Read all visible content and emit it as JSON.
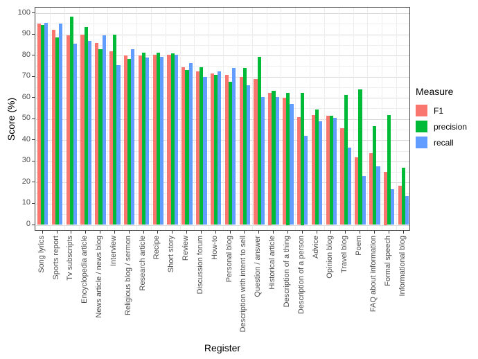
{
  "figure": {
    "y_axis_title": "Score (%)",
    "x_axis_title": "Register",
    "y_tick_labels": [
      "0",
      "10",
      "20",
      "30",
      "40",
      "50",
      "60",
      "70",
      "80",
      "90",
      "100"
    ],
    "legend": {
      "title": "Measure",
      "items": [
        {
          "label": "F1",
          "color": "#F8766D"
        },
        {
          "label": "precision",
          "color": "#00BA38"
        },
        {
          "label": "recall",
          "color": "#619CFF"
        }
      ]
    }
  },
  "chart_data": {
    "type": "bar",
    "title": "",
    "xlabel": "Register",
    "ylabel": "Score (%)",
    "ylim": [
      0,
      100
    ],
    "y_major_ticks": [
      0,
      10,
      20,
      30,
      40,
      50,
      60,
      70,
      80,
      90,
      100
    ],
    "y_minor_ticks": [
      5,
      15,
      25,
      35,
      45,
      55,
      65,
      75,
      85,
      95
    ],
    "grid": true,
    "legend_position": "right",
    "categories": [
      "Song lyrics",
      "Sports report",
      "Tv subscripts",
      "Encyclopedia article",
      "News article / news blog",
      "Interview",
      "Religious blog / sermon",
      "Research article",
      "Recipe",
      "Short story",
      "Review",
      "Discussion forum",
      "How-to",
      "Personal blog",
      "Description with intent to sell",
      "Question / answer",
      "Historical article",
      "Description of a thing",
      "Description of a person",
      "Advice",
      "Opinion blog",
      "Travel blog",
      "Poem",
      "FAQ about information",
      "Formal speech",
      "Informational blog"
    ],
    "series": [
      {
        "name": "F1",
        "color": "#F8766D",
        "values": [
          95,
          92,
          89.5,
          90,
          86,
          82,
          80,
          80,
          80.5,
          80.5,
          74.5,
          72.5,
          71.5,
          71,
          70,
          69,
          62.5,
          60,
          51,
          52,
          51.5,
          45.5,
          32,
          34,
          25,
          18.5
        ]
      },
      {
        "name": "precision",
        "color": "#00BA38",
        "values": [
          94.5,
          88.5,
          98.5,
          93.5,
          83,
          90,
          78.5,
          81.5,
          81.5,
          81,
          73,
          74.5,
          71,
          67.5,
          74,
          79.5,
          63.5,
          62.5,
          62.5,
          54.5,
          51.5,
          61.5,
          64,
          46.5,
          52,
          27
        ]
      },
      {
        "name": "recall",
        "color": "#619CFF",
        "values": [
          95.5,
          95,
          85.5,
          87,
          89.5,
          75.5,
          83,
          79,
          79.5,
          80.5,
          76.5,
          70,
          72.5,
          74,
          66,
          60.5,
          60.5,
          57,
          42,
          49,
          50.5,
          36.5,
          23,
          27.5,
          17,
          13.5
        ]
      }
    ]
  }
}
